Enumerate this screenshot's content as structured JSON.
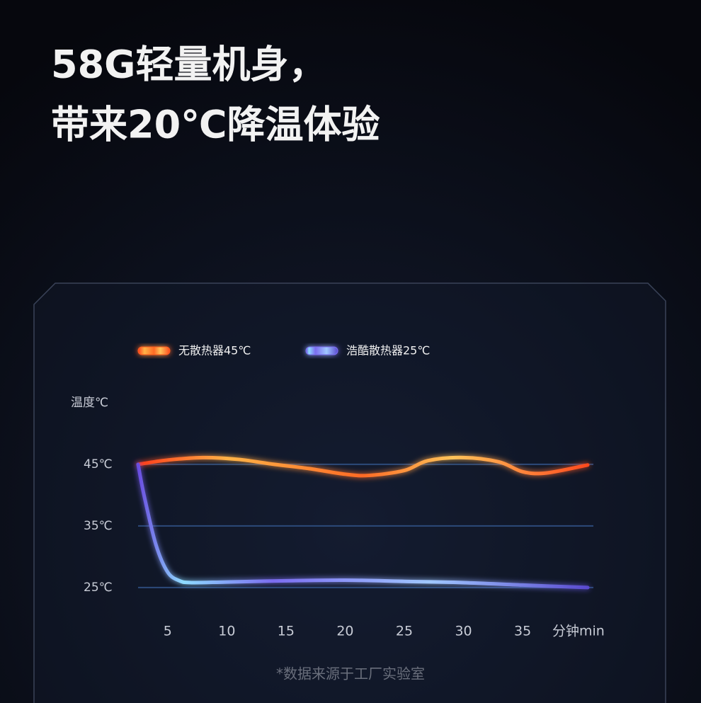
{
  "chart_data": {
    "type": "line",
    "title": [
      "58G轻量机身，",
      "带来20℃降温体验"
    ],
    "y_label": "温度℃",
    "x_label": "分钟min",
    "note": "*数据来源于工厂实验室",
    "xlim": [
      2.5,
      40.5
    ],
    "xticks": [
      5,
      10,
      15,
      20,
      25,
      30,
      35
    ],
    "ylim": [
      22,
      52
    ],
    "yticks": [
      {
        "value": 25,
        "label": "25℃"
      },
      {
        "value": 35,
        "label": "35℃"
      },
      {
        "value": 45,
        "label": "45℃"
      }
    ],
    "grid": true,
    "series": [
      {
        "name": "无散热器45℃",
        "color": "#ff5a1f",
        "x": [
          2.5,
          5,
          8,
          11,
          14,
          17,
          20,
          22,
          25,
          27,
          30,
          33,
          35,
          37,
          40.5
        ],
        "values": [
          45,
          45.7,
          46.1,
          45.8,
          45,
          44.3,
          43.4,
          43.2,
          44,
          45.6,
          46.1,
          45.4,
          43.8,
          43.6,
          44.9
        ]
      },
      {
        "name": "浩酷散热器25℃",
        "color": "#7b6cf0",
        "x": [
          2.5,
          3,
          4,
          5,
          6,
          7,
          10,
          15,
          20,
          25,
          30,
          35,
          40.5
        ],
        "values": [
          45,
          40,
          32,
          27.5,
          26.1,
          25.8,
          25.9,
          26.1,
          26.2,
          26,
          25.8,
          25.4,
          25
        ]
      }
    ]
  }
}
